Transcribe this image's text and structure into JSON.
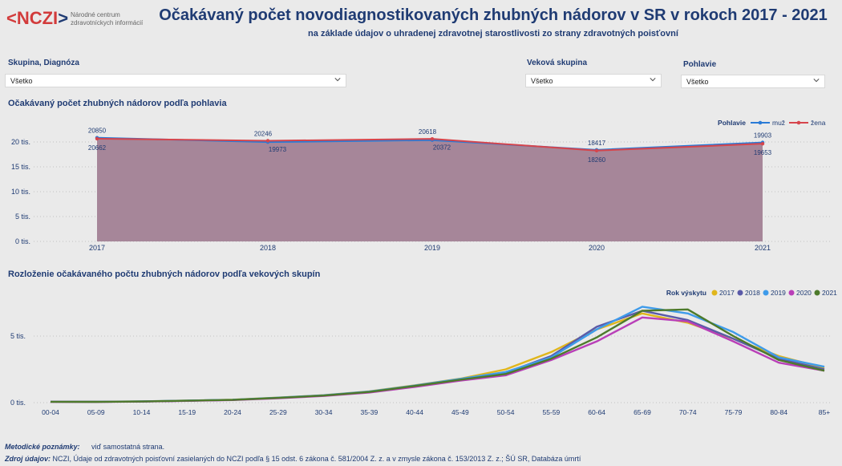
{
  "header": {
    "logo_text_red": "<NCZI",
    "logo_text_bracket": ">",
    "logo_sub_1": "Národné centrum",
    "logo_sub_2": "zdravotníckych informácií",
    "title": "Očakávaný počet novodiagnostikovaných zhubných nádorov v SR v rokoch 2017 - 2021",
    "subtitle": "na základe údajov o uhradenej zdravotnej starostlivosti zo strany zdravotných poisťovní"
  },
  "filters": {
    "group": {
      "label": "Skupina, Diagnóza",
      "value": "Všetko"
    },
    "age": {
      "label": "Veková skupina",
      "value": "Všetko"
    },
    "sex": {
      "label": "Pohlavie",
      "value": "Všetko"
    }
  },
  "colors": {
    "muz": "#2a7bd6",
    "zena": "#d6454c",
    "area": "#a68699",
    "y2017": "#e0b61c",
    "y2018": "#5a5aa8",
    "y2019": "#3e9bea",
    "y2020": "#b93fb8",
    "y2021": "#4d7a2b"
  },
  "chart_data": [
    {
      "type": "line",
      "title": "Očakávaný počet zhubných nádorov podľa pohlavia",
      "x": [
        "2017",
        "2018",
        "2019",
        "2020",
        "2021"
      ],
      "y_ticks": [
        "0 tis.",
        "5 tis.",
        "10 tis.",
        "15 tis.",
        "20 tis."
      ],
      "ylim": [
        0,
        23000
      ],
      "legend_title": "Pohlavie",
      "legend_position": "top-right",
      "series": [
        {
          "name": "muž",
          "values": [
            20850,
            19973,
            20372,
            18417,
            19903
          ]
        },
        {
          "name": "žena",
          "values": [
            20662,
            20246,
            20618,
            18260,
            19653
          ]
        }
      ]
    },
    {
      "type": "line",
      "title": "Rozloženie očakávaného počtu zhubných nádorov podľa vekových skupín",
      "x": [
        "00-04",
        "05-09",
        "10-14",
        "15-19",
        "20-24",
        "25-29",
        "30-34",
        "35-39",
        "40-44",
        "45-49",
        "50-54",
        "55-59",
        "60-64",
        "65-69",
        "70-74",
        "75-79",
        "80-84",
        "85+"
      ],
      "y_ticks": [
        "0 tis.",
        "5 tis."
      ],
      "ylim": [
        0,
        8000
      ],
      "legend_title": "Rok výskytu",
      "legend_position": "top-right",
      "series": [
        {
          "name": "2017",
          "values": [
            70,
            60,
            90,
            150,
            220,
            380,
            560,
            850,
            1300,
            1800,
            2500,
            3800,
            5500,
            6700,
            6000,
            4800,
            3500,
            2600
          ]
        },
        {
          "name": "2018",
          "values": [
            65,
            60,
            85,
            140,
            210,
            360,
            540,
            820,
            1250,
            1750,
            2250,
            3500,
            5700,
            6900,
            6200,
            4800,
            3300,
            2500
          ]
        },
        {
          "name": "2019",
          "values": [
            70,
            65,
            90,
            150,
            215,
            370,
            550,
            830,
            1280,
            1780,
            2300,
            3400,
            5500,
            7200,
            6700,
            5300,
            3400,
            2700
          ]
        },
        {
          "name": "2020",
          "values": [
            60,
            55,
            80,
            130,
            195,
            330,
            500,
            760,
            1180,
            1650,
            2050,
            3200,
            4600,
            6400,
            6100,
            4600,
            3000,
            2400
          ]
        },
        {
          "name": "2021",
          "values": [
            65,
            60,
            85,
            145,
            210,
            360,
            530,
            800,
            1250,
            1720,
            2150,
            3300,
            4900,
            6900,
            7000,
            5000,
            3200,
            2400
          ]
        }
      ]
    }
  ],
  "footer": {
    "notes_label": "Metodické poznámky:",
    "notes_value": "viď samostatná strana.",
    "source_label": "Zdroj údajov:",
    "source_value": "NCZI, Údaje od zdravotných poisťovní zasielaných do NCZI podľa § 15 odst. 6 zákona č. 581/2004 Z. z. a v zmysle zákona č. 153/2013 Z. z.; ŠÚ SR, Databáza úmrtí"
  }
}
